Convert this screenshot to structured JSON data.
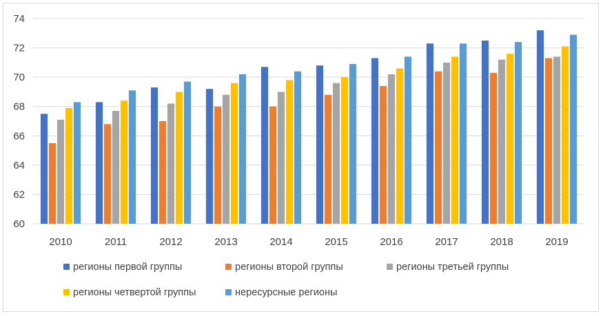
{
  "chart_data": {
    "type": "bar",
    "categories": [
      "2010",
      "2011",
      "2012",
      "2013",
      "2014",
      "2015",
      "2016",
      "2017",
      "2018",
      "2019"
    ],
    "series": [
      {
        "name": "регионы первой группы",
        "color": "#4472C4",
        "values": [
          67.5,
          68.3,
          69.3,
          69.2,
          70.7,
          70.8,
          71.3,
          72.3,
          72.5,
          73.2
        ]
      },
      {
        "name": "регионы второй группы",
        "color": "#ED7D31",
        "values": [
          65.5,
          66.8,
          67.0,
          68.0,
          68.0,
          68.8,
          69.4,
          70.4,
          70.3,
          71.3
        ]
      },
      {
        "name": "регионы третьей группы",
        "color": "#A5A5A5",
        "values": [
          67.1,
          67.7,
          68.2,
          68.8,
          69.0,
          69.6,
          70.2,
          71.0,
          71.2,
          71.4
        ]
      },
      {
        "name": "регионы четвертой группы",
        "color": "#FFC000",
        "values": [
          67.9,
          68.4,
          69.0,
          69.6,
          69.8,
          70.0,
          70.6,
          71.4,
          71.6,
          72.1
        ]
      },
      {
        "name": "нересурсные регионы",
        "color": "#5B9BD5",
        "values": [
          68.3,
          69.1,
          69.7,
          70.2,
          70.4,
          70.9,
          71.4,
          72.3,
          72.4,
          72.9
        ]
      }
    ],
    "ylim": [
      60,
      74
    ],
    "yticks": [
      60,
      62,
      64,
      66,
      68,
      70,
      72,
      74
    ],
    "grid": true,
    "legend_position": "bottom"
  }
}
